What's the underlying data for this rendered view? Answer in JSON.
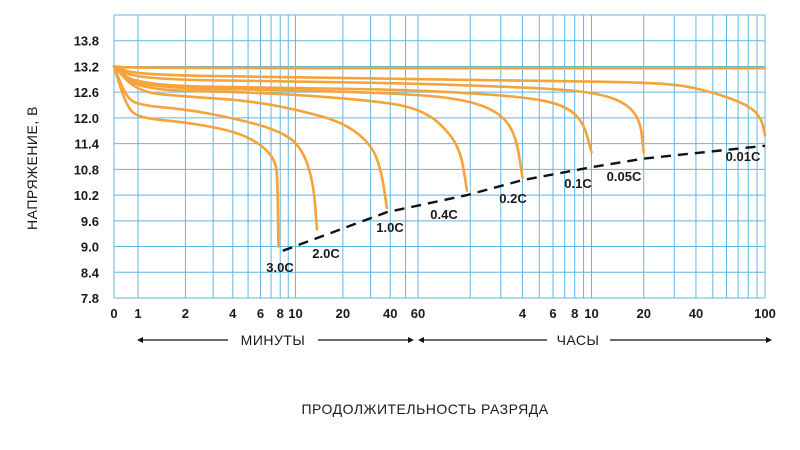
{
  "chart_data": {
    "type": "line",
    "ylabel": "НАПРЯЖЕНИЕ, В",
    "xlabel": "ПРОДОЛЖИТЕЛЬНОСТЬ РАЗРЯДА",
    "x_scale": "log",
    "x_unit_minutes_label": "МИНУТЫ",
    "x_unit_hours_label": "ЧАСЫ",
    "ylim": [
      7.8,
      14.4
    ],
    "y_ticks": [
      "13.8",
      "13.2",
      "12.6",
      "12.0",
      "11.4",
      "10.8",
      "10.2",
      "9.6",
      "9.0",
      "8.4",
      "7.8"
    ],
    "x_ticks_minutes": [
      "1",
      "2",
      "4",
      "6",
      "8",
      "10",
      "20",
      "40",
      "60"
    ],
    "x_ticks_hours": [
      "4",
      "6",
      "8",
      "10",
      "20",
      "40",
      "100"
    ],
    "x_origin_label": "0",
    "grid": true,
    "colors": {
      "curve": "#f5a33a",
      "grid": "#5fb8e2",
      "cutoff": "#111111"
    },
    "series": [
      {
        "name": "3.0C",
        "points": [
          [
            0,
            13.2
          ],
          [
            0.5,
            12.3
          ],
          [
            1.0,
            12.0
          ],
          [
            2,
            11.9
          ],
          [
            4,
            11.7
          ],
          [
            6,
            11.4
          ],
          [
            7.5,
            11.0
          ],
          [
            7.7,
            10.5
          ],
          [
            7.8,
            9.0
          ]
        ]
      },
      {
        "name": "2.0C",
        "points": [
          [
            0,
            13.2
          ],
          [
            0.5,
            12.5
          ],
          [
            1.0,
            12.3
          ],
          [
            2,
            12.2
          ],
          [
            4,
            12.0
          ],
          [
            8,
            11.7
          ],
          [
            11,
            11.3
          ],
          [
            13,
            10.5
          ],
          [
            13.7,
            9.4
          ]
        ]
      },
      {
        "name": "1.0C",
        "points": [
          [
            0,
            13.2
          ],
          [
            1,
            12.6
          ],
          [
            2,
            12.5
          ],
          [
            5,
            12.4
          ],
          [
            10,
            12.2
          ],
          [
            20,
            11.9
          ],
          [
            30,
            11.4
          ],
          [
            35,
            10.8
          ],
          [
            38,
            9.9
          ]
        ]
      },
      {
        "name": "0.4C",
        "points": [
          [
            0,
            13.2
          ],
          [
            1,
            12.65
          ],
          [
            5,
            12.6
          ],
          [
            15,
            12.5
          ],
          [
            40,
            12.35
          ],
          [
            60,
            12.2
          ],
          [
            80,
            11.9
          ],
          [
            105,
            11.3
          ],
          [
            115,
            10.3
          ]
        ]
      },
      {
        "name": "0.2C",
        "points": [
          [
            0,
            13.2
          ],
          [
            1,
            12.7
          ],
          [
            10,
            12.65
          ],
          [
            60,
            12.55
          ],
          [
            120,
            12.4
          ],
          [
            180,
            12.1
          ],
          [
            220,
            11.6
          ],
          [
            240,
            10.6
          ]
        ]
      },
      {
        "name": "0.1C",
        "points": [
          [
            0,
            13.2
          ],
          [
            1,
            12.75
          ],
          [
            10,
            12.7
          ],
          [
            60,
            12.65
          ],
          [
            240,
            12.5
          ],
          [
            420,
            12.3
          ],
          [
            540,
            11.9
          ],
          [
            600,
            11.2
          ]
        ]
      },
      {
        "name": "0.05C",
        "points": [
          [
            0,
            13.2
          ],
          [
            1,
            12.9
          ],
          [
            10,
            12.85
          ],
          [
            60,
            12.8
          ],
          [
            300,
            12.7
          ],
          [
            600,
            12.6
          ],
          [
            900,
            12.4
          ],
          [
            1140,
            12.0
          ],
          [
            1200,
            11.2
          ]
        ]
      },
      {
        "name": "0.01C",
        "points": [
          [
            0,
            13.2
          ],
          [
            1,
            13.0
          ],
          [
            10,
            12.95
          ],
          [
            60,
            12.9
          ],
          [
            600,
            12.85
          ],
          [
            1800,
            12.8
          ],
          [
            3000,
            12.6
          ],
          [
            4800,
            12.3
          ],
          [
            5700,
            12.0
          ],
          [
            6000,
            11.6
          ]
        ]
      },
      {
        "name": "",
        "points": [
          [
            0,
            13.2
          ],
          [
            1,
            13.16
          ],
          [
            6000,
            13.16
          ]
        ]
      }
    ],
    "cutoff_line": {
      "points": [
        [
          8.3,
          8.9
        ],
        [
          38,
          9.8
        ],
        [
          115,
          10.2
        ],
        [
          240,
          10.55
        ],
        [
          600,
          10.85
        ],
        [
          1200,
          11.05
        ],
        [
          6000,
          11.35
        ]
      ]
    },
    "rate_labels": [
      "3.0C",
      "2.0C",
      "1.0C",
      "0.4C",
      "0.2C",
      "0.1C",
      "0.05C",
      "0.01C"
    ]
  }
}
